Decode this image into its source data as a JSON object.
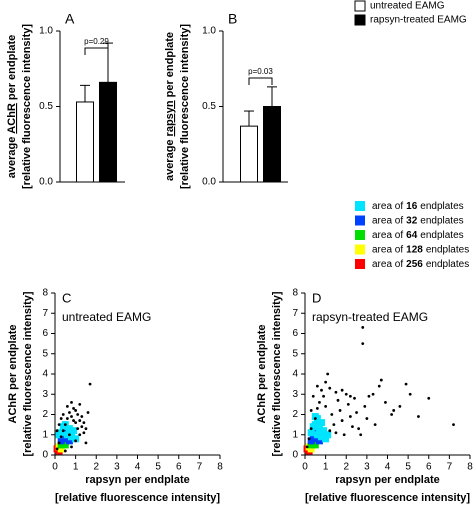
{
  "chart_data": [
    {
      "type": "bar",
      "panel": "A",
      "ylabel": [
        [
          "average",
          "AChR",
          "per endplate"
        ],
        [
          "[relative fluorescence intensity]"
        ]
      ],
      "series": [
        {
          "name": "untreated EAMG",
          "color": "#ffffff",
          "values": [
            0.53
          ],
          "errors": [
            0.11
          ]
        },
        {
          "name": "rapsyn-treated EAMG",
          "color": "#000000",
          "values": [
            0.66
          ],
          "errors": [
            0.26
          ]
        }
      ],
      "annotation": "p=0.29",
      "ylim": [
        0,
        1.0
      ],
      "yticks": [
        {
          "value": 0,
          "label": "0.0"
        },
        {
          "value": 0.5,
          "label": "0.5"
        },
        {
          "value": 1.0,
          "label": "1.0"
        }
      ]
    },
    {
      "type": "bar",
      "panel": "B",
      "ylabel": [
        [
          "average",
          "rapsyn",
          "per endplate"
        ],
        [
          "[relative fluorescence intensity]"
        ]
      ],
      "series": [
        {
          "color": "#ffffff",
          "values": [
            0.37
          ],
          "errors": [
            0.1
          ]
        },
        {
          "color": "#000000",
          "values": [
            0.5
          ],
          "errors": [
            0.13
          ]
        }
      ],
      "annotation": "p=0.03",
      "ylim": [
        0,
        1.0
      ],
      "yticks": [
        {
          "value": 0,
          "label": "0.0"
        },
        {
          "value": 0.5,
          "label": "0.5"
        },
        {
          "value": 1.0,
          "label": "1.0"
        }
      ]
    },
    {
      "type": "scatter",
      "panel": "C",
      "subtitle": "untreated EAMG",
      "ylabel": [
        [
          "AChR per endplate"
        ],
        [
          "[relative fluorescence intensity]"
        ]
      ],
      "xlabel": [
        "rapsyn per endplate",
        "[relative fluorescence intensity]"
      ],
      "xlim": [
        0,
        8
      ],
      "ylim": [
        0,
        8
      ],
      "xticks": [
        0,
        1,
        2,
        3,
        4,
        5,
        6,
        7,
        8
      ],
      "yticks": [
        0,
        1,
        2,
        3,
        4,
        5,
        6,
        7,
        8
      ],
      "series": [
        {
          "color": "#000000",
          "x": [
            0.1,
            0.2,
            0.3,
            0.4,
            0.5,
            0.6,
            0.7,
            0.8,
            0.9,
            1.0,
            1.1,
            1.2,
            1.3,
            1.4,
            1.5,
            1.7,
            1.2,
            0.9,
            0.6,
            0.4,
            0.3,
            0.2,
            0.5,
            0.8,
            1.0,
            1.1,
            1.3,
            1.6,
            0.7,
            1.2,
            0.1,
            1.4,
            0.8,
            1.0,
            1.5
          ],
          "y": [
            0.3,
            0.6,
            0.9,
            1.2,
            1.5,
            1.8,
            2.1,
            1.9,
            1.7,
            1.6,
            1.3,
            1.0,
            1.4,
            1.1,
            0.6,
            3.5,
            2.5,
            2.3,
            2.4,
            2.0,
            1.8,
            1.5,
            0.2,
            0.4,
            0.7,
            2.0,
            1.9,
            2.1,
            1.0,
            1.7,
            1.2,
            1.6,
            2.6,
            2.2,
            1.3
          ]
        },
        {
          "color": "#00e5ff",
          "x": [
            0.5,
            0.7,
            0.9,
            0.3,
            0.6,
            0.8,
            1.0,
            0.4,
            0.2
          ],
          "y": [
            1.5,
            1.3,
            1.2,
            1.1,
            1.0,
            0.9,
            0.8,
            1.4,
            1.0
          ]
        },
        {
          "color": "#0040ff",
          "x": [
            0.4,
            0.5,
            0.7,
            0.3,
            0.6
          ],
          "y": [
            1.0,
            0.8,
            0.7,
            0.7,
            1.1
          ]
        },
        {
          "color": "#00dd00",
          "x": [
            0.3,
            0.4,
            0.5
          ],
          "y": [
            0.5,
            0.6,
            0.5
          ]
        },
        {
          "color": "#ffff00",
          "x": [
            0.2,
            0.3
          ],
          "y": [
            0.4,
            0.3
          ]
        },
        {
          "color": "#ff0000",
          "x": [
            0.2,
            0.1
          ],
          "y": [
            0.2,
            0.3
          ]
        }
      ]
    },
    {
      "type": "scatter",
      "panel": "D",
      "subtitle": "rapsyn-treated EAMG",
      "ylabel": [
        [
          "AChR per endplate"
        ],
        [
          "[relative fluorescence intensity]"
        ]
      ],
      "xlabel": [
        "rapsyn per endplate",
        "[relative fluorescence intensity]"
      ],
      "xlim": [
        0,
        8
      ],
      "ylim": [
        0,
        8
      ],
      "xticks": [
        0,
        1,
        2,
        3,
        4,
        5,
        6,
        7,
        8
      ],
      "yticks": [
        0,
        1,
        2,
        3,
        4,
        5,
        6,
        7,
        8
      ],
      "series": [
        {
          "color": "#000000",
          "x": [
            0.1,
            0.2,
            0.3,
            0.5,
            0.6,
            0.7,
            0.8,
            0.9,
            1.0,
            1.1,
            1.2,
            1.3,
            1.4,
            1.5,
            1.6,
            1.7,
            1.8,
            1.9,
            2.0,
            2.1,
            2.2,
            2.3,
            2.4,
            2.5,
            2.6,
            2.8,
            2.8,
            2.9,
            3.0,
            3.1,
            3.3,
            3.4,
            3.6,
            3.7,
            3.9,
            4.2,
            4.3,
            4.6,
            4.9,
            5.1,
            5.5,
            6.0,
            7.2,
            0.4,
            0.6,
            1.0,
            1.5,
            1.8,
            2.2,
            0.3,
            1.2,
            2.7
          ],
          "y": [
            0.4,
            0.8,
            1.3,
            1.8,
            2.3,
            2.6,
            3.2,
            2.9,
            2.4,
            4.0,
            3.3,
            2.0,
            1.5,
            1.1,
            2.7,
            2.2,
            1.7,
            1.0,
            3.0,
            2.5,
            1.9,
            1.4,
            2.8,
            2.1,
            1.3,
            6.3,
            5.5,
            2.4,
            1.8,
            2.9,
            3.0,
            1.5,
            3.4,
            3.7,
            2.6,
            2.0,
            2.2,
            2.4,
            3.5,
            3.0,
            1.9,
            2.8,
            1.5,
            2.9,
            3.4,
            3.6,
            3.1,
            3.2,
            2.9,
            2.2,
            1.2,
            1.0
          ]
        },
        {
          "color": "#00e5ff",
          "x": [
            0.5,
            0.7,
            0.9,
            0.3,
            0.6,
            0.8,
            1.0,
            0.4,
            0.6,
            0.8,
            0.5,
            1.1
          ],
          "y": [
            1.5,
            1.3,
            1.2,
            1.1,
            1.0,
            0.9,
            0.8,
            1.4,
            1.8,
            1.6,
            1.9,
            1.0
          ]
        },
        {
          "color": "#0040ff",
          "x": [
            0.4,
            0.5,
            0.7,
            0.3,
            0.6,
            0.5
          ],
          "y": [
            1.0,
            0.8,
            0.7,
            0.7,
            1.1,
            1.3
          ]
        },
        {
          "color": "#00dd00",
          "x": [
            0.3,
            0.4,
            0.5
          ],
          "y": [
            0.5,
            0.6,
            0.5
          ]
        },
        {
          "color": "#ffff00",
          "x": [
            0.2,
            0.3
          ],
          "y": [
            0.4,
            0.3
          ]
        },
        {
          "color": "#ff0000",
          "x": [
            0.2,
            0.1
          ],
          "y": [
            0.2,
            0.3
          ]
        }
      ]
    }
  ],
  "density_legend": [
    {
      "prefix": "area of",
      "count": 16,
      "suffix": "endplates",
      "color": "#00e5ff"
    },
    {
      "prefix": "area of",
      "count": 32,
      "suffix": "endplates",
      "color": "#0040ff"
    },
    {
      "prefix": "area of",
      "count": 64,
      "suffix": "endplates",
      "color": "#00dd00"
    },
    {
      "prefix": "area of",
      "count": 128,
      "suffix": "endplates",
      "color": "#ffff00"
    },
    {
      "prefix": "area of",
      "count": 256,
      "suffix": "endplates",
      "color": "#ff0000"
    }
  ]
}
